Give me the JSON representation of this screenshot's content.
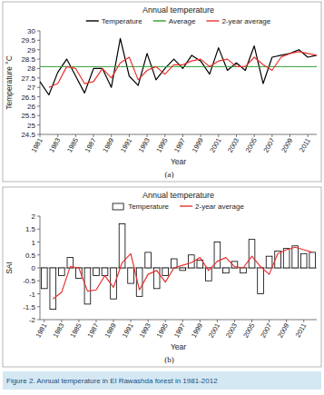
{
  "chart_data": [
    {
      "type": "line",
      "title": "Annual temperature",
      "label": "(a)",
      "x_label": "Year",
      "y_label": "Temperature °C",
      "x": [
        1981,
        1982,
        1983,
        1984,
        1985,
        1986,
        1987,
        1988,
        1989,
        1990,
        1991,
        1992,
        1993,
        1994,
        1995,
        1996,
        1997,
        1998,
        1999,
        2000,
        2001,
        2002,
        2003,
        2004,
        2005,
        2006,
        2007,
        2008,
        2009,
        2010,
        2011,
        2012
      ],
      "series": [
        {
          "name": "Temperature",
          "color": "#000000",
          "type": "line",
          "values": [
            27.3,
            26.6,
            27.8,
            28.5,
            27.6,
            26.7,
            28.0,
            28.0,
            27.0,
            29.6,
            27.6,
            27.1,
            28.8,
            27.4,
            28.0,
            28.5,
            28.0,
            28.7,
            28.4,
            27.7,
            29.1,
            27.9,
            28.3,
            27.9,
            29.2,
            27.2,
            28.6,
            28.7,
            28.8,
            29.0,
            28.6,
            28.7
          ]
        },
        {
          "name": "Average",
          "color": "#2e9e2e",
          "type": "line",
          "values": [
            28.1,
            28.1,
            28.1,
            28.1,
            28.1,
            28.1,
            28.1,
            28.1,
            28.1,
            28.1,
            28.1,
            28.1,
            28.1,
            28.1,
            28.1,
            28.1,
            28.1,
            28.1,
            28.1,
            28.1,
            28.1,
            28.1,
            28.1,
            28.1,
            28.1,
            28.1,
            28.1,
            28.1,
            28.1,
            28.1,
            28.1,
            28.1
          ]
        },
        {
          "name": "2-year average",
          "color": "#e8312f",
          "type": "line",
          "values": [
            null,
            27.0,
            27.2,
            28.1,
            28.0,
            27.2,
            27.3,
            28.0,
            27.5,
            28.3,
            28.6,
            27.4,
            27.9,
            28.1,
            27.7,
            28.2,
            28.2,
            28.4,
            28.5,
            28.1,
            28.4,
            28.5,
            28.1,
            28.1,
            28.6,
            28.2,
            27.9,
            28.6,
            28.8,
            28.9,
            28.8,
            28.7
          ]
        }
      ],
      "xlim": [
        1981,
        2012
      ],
      "xticks": [
        1981,
        1983,
        1985,
        1987,
        1989,
        1991,
        1993,
        1995,
        1997,
        1999,
        2001,
        2003,
        2005,
        2007,
        2009,
        2011
      ],
      "ylim": [
        24.5,
        30
      ],
      "yticks": [
        24.5,
        25,
        25.5,
        26,
        26.5,
        27,
        27.5,
        28,
        28.5,
        29,
        29.5,
        30
      ],
      "grid": false,
      "legend": "top"
    },
    {
      "type": "bar",
      "title": "Annual temperature",
      "label": "(b)",
      "x_label": "Year",
      "y_label": "SAI",
      "x": [
        1981,
        1982,
        1983,
        1984,
        1985,
        1986,
        1987,
        1988,
        1989,
        1990,
        1991,
        1992,
        1993,
        1994,
        1995,
        1996,
        1997,
        1998,
        1999,
        2000,
        2001,
        2002,
        2003,
        2004,
        2005,
        2006,
        2007,
        2008,
        2009,
        2010,
        2011,
        2012
      ],
      "series": [
        {
          "name": "Temperature",
          "color": "#ffffff",
          "type": "bar",
          "values": [
            -0.8,
            -1.6,
            -0.3,
            0.4,
            -0.4,
            -1.4,
            -0.3,
            -0.3,
            -1.2,
            1.7,
            -0.6,
            -1.1,
            0.6,
            -0.8,
            -0.3,
            0.35,
            -0.1,
            0.5,
            0.3,
            -0.5,
            1.0,
            -0.2,
            0.25,
            -0.2,
            1.1,
            -1.0,
            0.45,
            0.65,
            0.75,
            0.85,
            0.55,
            0.6
          ]
        },
        {
          "name": "2-year average",
          "color": "#e8312f",
          "type": "line",
          "values": [
            null,
            -1.2,
            -0.95,
            0.05,
            0.0,
            -0.9,
            -0.85,
            -0.3,
            -0.75,
            0.2,
            0.55,
            -0.85,
            -0.25,
            -0.1,
            -0.55,
            0.0,
            0.1,
            0.2,
            0.4,
            -0.1,
            0.25,
            0.4,
            0.05,
            0.0,
            0.45,
            0.05,
            -0.25,
            0.55,
            0.7,
            0.8,
            0.7,
            0.6
          ]
        }
      ],
      "xlim": [
        1980.5,
        2012.5
      ],
      "xticks": [
        1981,
        1983,
        1985,
        1987,
        1989,
        1991,
        1993,
        1995,
        1997,
        1999,
        2001,
        2003,
        2005,
        2007,
        2009,
        2011
      ],
      "ylim": [
        -2,
        2
      ],
      "yticks": [
        -2,
        -1.5,
        -1,
        -0.5,
        0,
        0.5,
        1,
        1.5,
        2
      ],
      "grid": false,
      "legend": "top"
    }
  ],
  "caption": "Figure 2. Annual temperature in El Rawashda forest in 1981-2012"
}
